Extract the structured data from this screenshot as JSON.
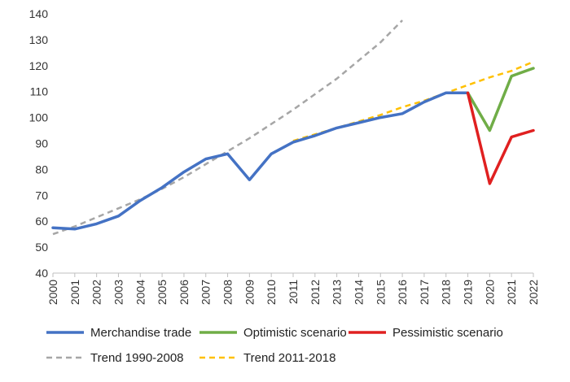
{
  "chart_data": {
    "type": "line",
    "title": "",
    "xlabel": "",
    "ylabel": "",
    "ylim": [
      40,
      140
    ],
    "yticks": [
      40,
      50,
      60,
      70,
      80,
      90,
      100,
      110,
      120,
      130,
      140
    ],
    "x_categories": [
      "2000",
      "2001",
      "2002",
      "2003",
      "2004",
      "2005",
      "2006",
      "2007",
      "2008",
      "2009",
      "2010",
      "2011",
      "2012",
      "2013",
      "2014",
      "2015",
      "2016",
      "2017",
      "2018",
      "2019",
      "2020",
      "2021",
      "2022"
    ],
    "grid": false,
    "legend_position": "bottom",
    "series": [
      {
        "name": "Merchandise trade",
        "color": "#4472C4",
        "style": "solid",
        "x": [
          2000,
          2001,
          2002,
          2003,
          2004,
          2005,
          2006,
          2007,
          2008,
          2009,
          2010,
          2011,
          2012,
          2013,
          2014,
          2015,
          2016,
          2017,
          2018,
          2019
        ],
        "y": [
          57.5,
          57,
          59,
          62,
          68,
          73,
          79,
          84,
          86,
          76,
          86,
          90.5,
          93,
          96,
          98,
          100,
          101.5,
          106,
          109.5,
          109.5
        ]
      },
      {
        "name": "Optimistic scenario",
        "color": "#70AD47",
        "style": "solid",
        "x": [
          2019,
          2020,
          2021,
          2022
        ],
        "y": [
          109.5,
          95,
          116,
          119
        ]
      },
      {
        "name": "Pessimistic scenario",
        "color": "#E02020",
        "style": "solid",
        "x": [
          2019,
          2020,
          2021,
          2022
        ],
        "y": [
          109.5,
          74.5,
          92.5,
          95
        ]
      },
      {
        "name": "Trend 1990-2008",
        "color": "#A6A6A6",
        "style": "dashed",
        "x": [
          2000,
          2001,
          2002,
          2003,
          2004,
          2005,
          2006,
          2007,
          2008,
          2009,
          2010,
          2011,
          2012,
          2013,
          2014,
          2015,
          2016
        ],
        "y": [
          55,
          58,
          61.5,
          65,
          68.5,
          72.5,
          77,
          82,
          87,
          92,
          97.5,
          103,
          109,
          115,
          122,
          129,
          137.5
        ]
      },
      {
        "name": "Trend 2011-2018",
        "color": "#FFC000",
        "style": "dashed",
        "x": [
          2011,
          2012,
          2013,
          2014,
          2015,
          2016,
          2017,
          2018,
          2019,
          2020,
          2021,
          2022
        ],
        "y": [
          91,
          93.5,
          96,
          98.5,
          101,
          104,
          106.5,
          109.5,
          112.5,
          115.5,
          118,
          121.5
        ]
      }
    ]
  }
}
